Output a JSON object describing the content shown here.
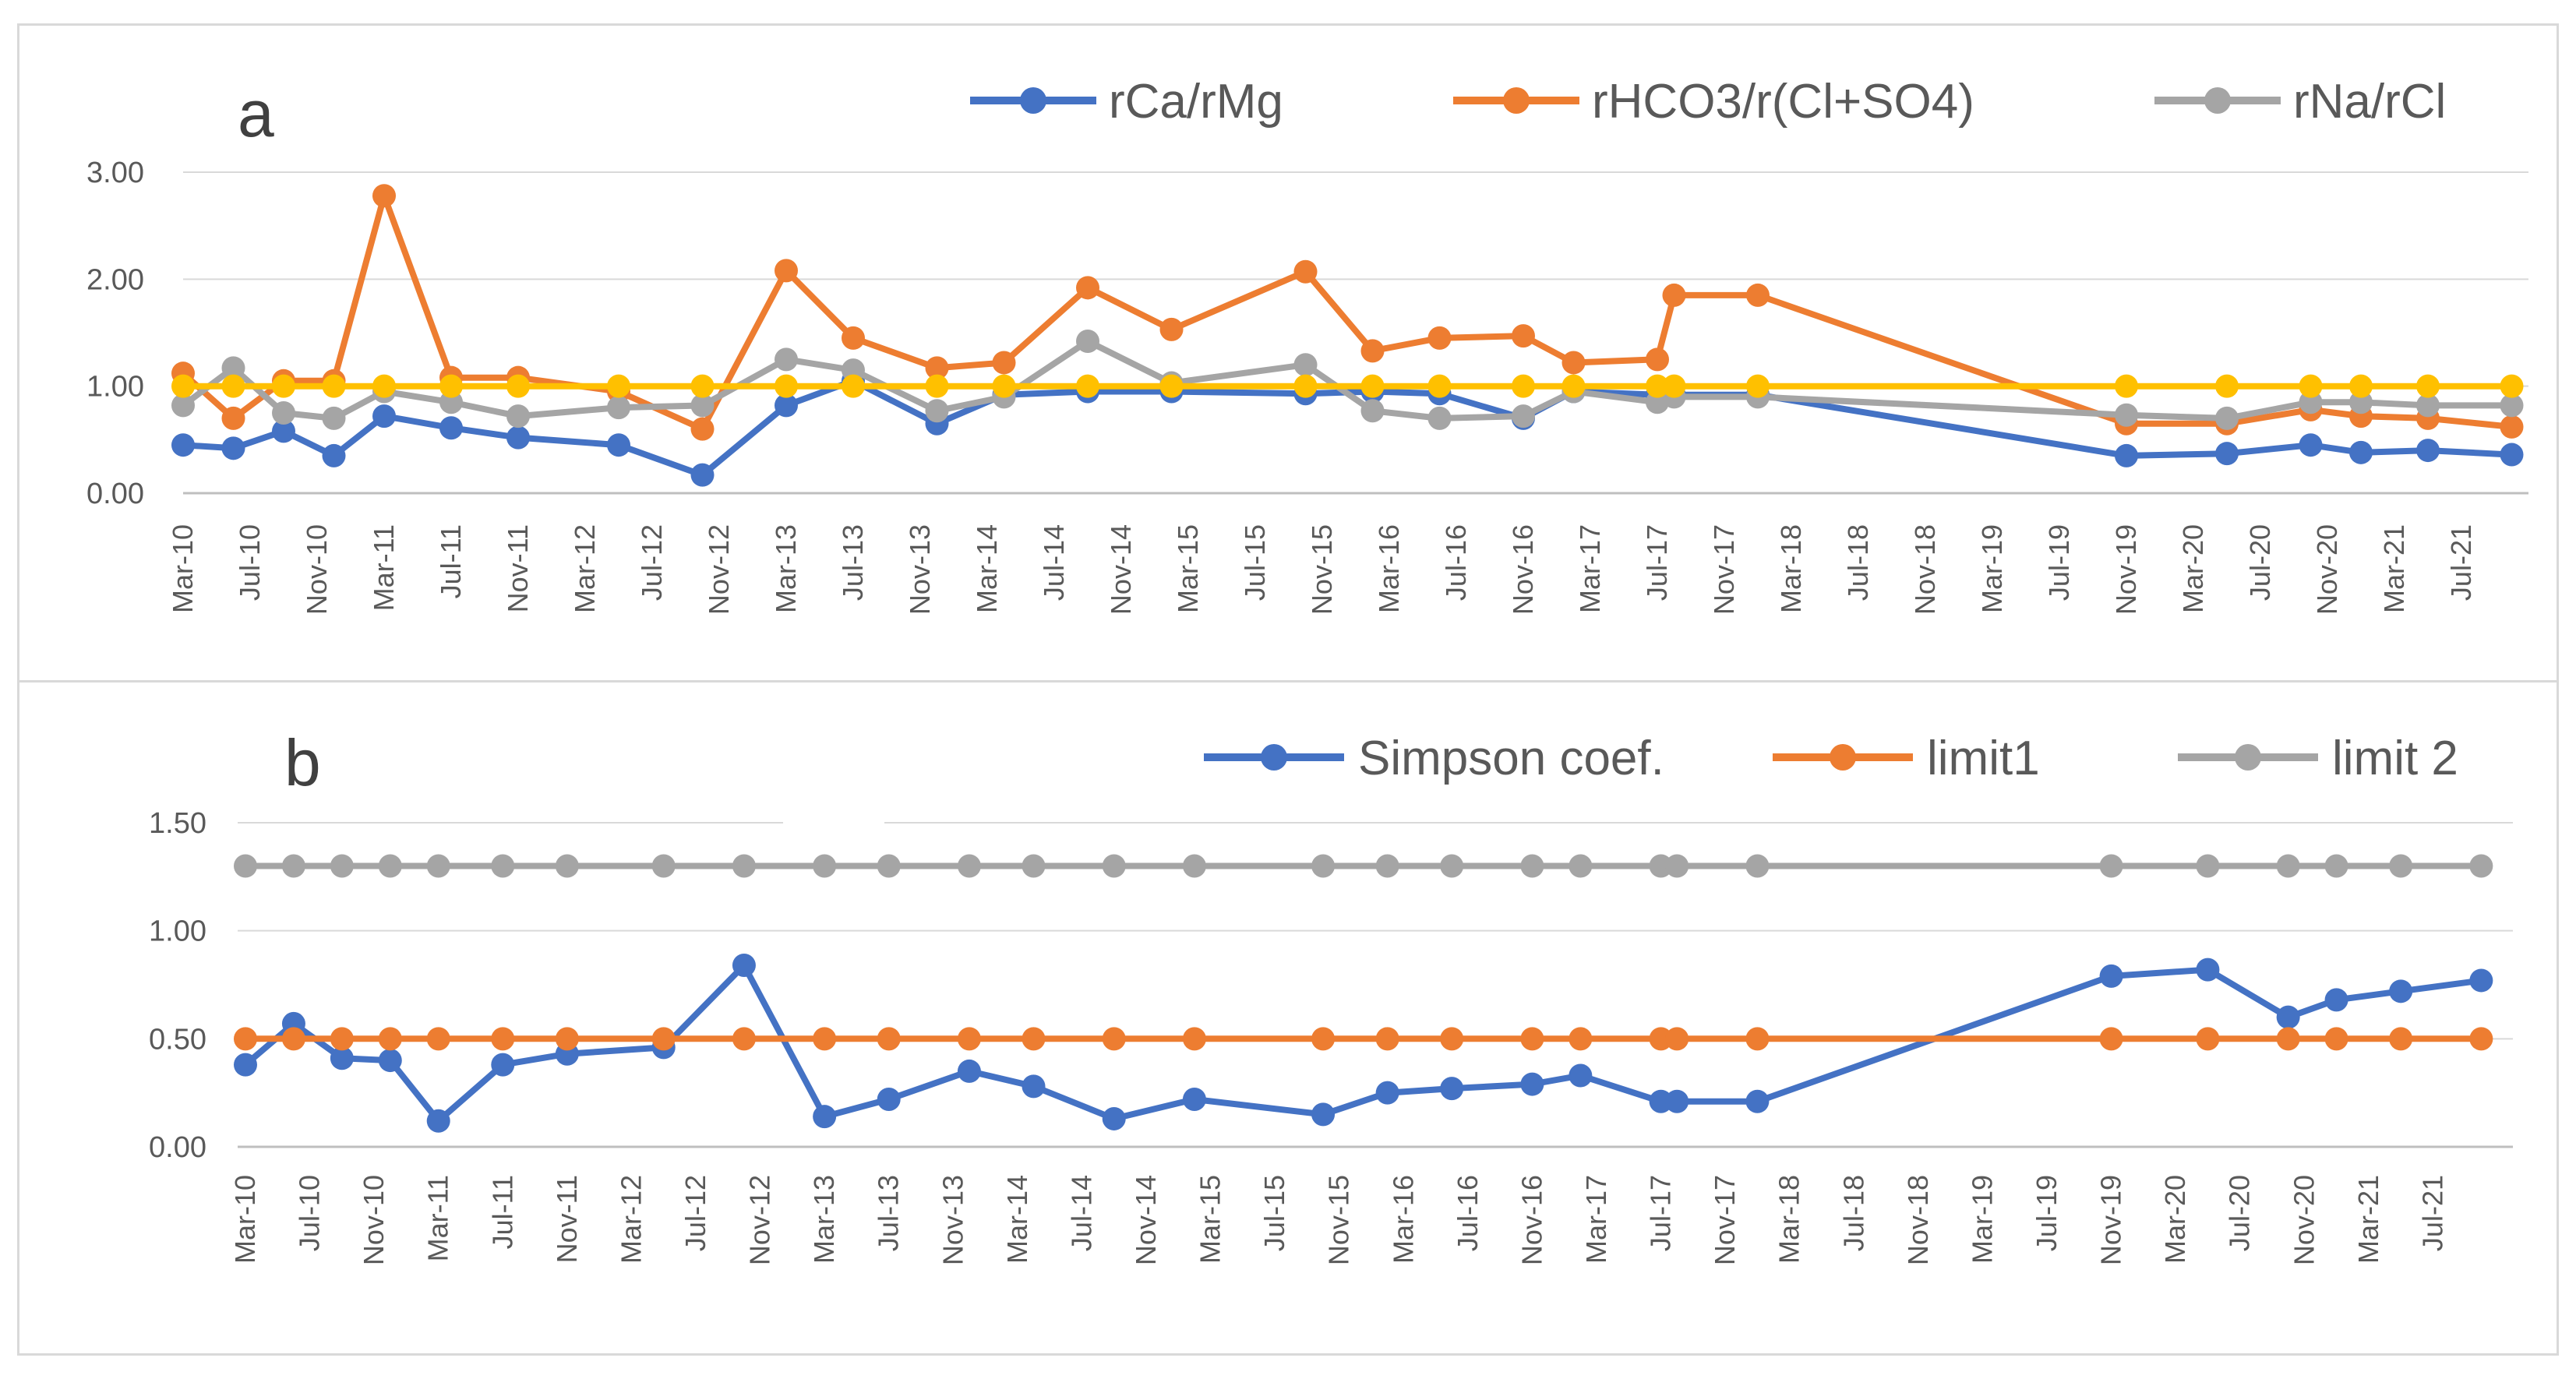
{
  "chart_data": [
    {
      "id": "a",
      "panel_label": "a",
      "type": "line",
      "categories": [
        "Mar-10",
        "Jul-10",
        "Nov-10",
        "Mar-11",
        "Jul-11",
        "Nov-11",
        "Mar-12",
        "Jul-12",
        "Nov-12",
        "Mar-13",
        "Jul-13",
        "Nov-13",
        "Mar-14",
        "Jul-14",
        "Nov-14",
        "Mar-15",
        "Jul-15",
        "Nov-15",
        "Mar-16",
        "Jul-16",
        "Nov-16",
        "Mar-17",
        "Jul-17",
        "Nov-17",
        "Mar-18",
        "Jul-18",
        "Nov-18",
        "Mar-19",
        "Jul-19",
        "Nov-19",
        "Mar-20",
        "Jul-20",
        "Nov-20",
        "Mar-21",
        "Jul-21"
      ],
      "yticks": [
        "0.00",
        "1.00",
        "2.00",
        "3.00"
      ],
      "ylim": [
        0,
        3
      ],
      "xrange_months": [
        0,
        140
      ],
      "grid": true,
      "legend_position": "top-right",
      "series": [
        {
          "name": "rCa/rMg",
          "color": "#4472C4",
          "x": [
            0,
            3,
            6,
            9,
            12,
            16,
            20,
            26,
            31,
            36,
            40,
            45,
            49,
            54,
            59,
            67,
            71,
            75,
            80,
            83,
            88,
            89,
            94,
            116,
            122,
            127,
            130,
            134,
            139
          ],
          "values": [
            0.45,
            0.42,
            0.58,
            0.35,
            0.72,
            0.61,
            0.52,
            0.45,
            0.17,
            0.82,
            1.05,
            0.65,
            0.92,
            0.95,
            0.95,
            0.93,
            0.95,
            0.93,
            0.7,
            0.95,
            0.92,
            0.92,
            0.92,
            0.35,
            0.37,
            0.45,
            0.38,
            0.4,
            0.36
          ]
        },
        {
          "name": "rHCO3/r(Cl+SO4)",
          "color": "#ED7D31",
          "x": [
            0,
            3,
            6,
            9,
            12,
            16,
            20,
            26,
            31,
            36,
            40,
            45,
            49,
            54,
            59,
            67,
            71,
            75,
            80,
            83,
            88,
            89,
            94,
            116,
            122,
            127,
            130,
            134,
            139
          ],
          "values": [
            1.12,
            0.7,
            1.05,
            1.05,
            2.78,
            1.08,
            1.08,
            0.95,
            0.6,
            2.08,
            1.45,
            1.17,
            1.22,
            1.92,
            1.53,
            2.07,
            1.33,
            1.45,
            1.47,
            1.22,
            1.25,
            1.85,
            1.85,
            0.65,
            0.65,
            0.78,
            0.72,
            0.7,
            0.62
          ]
        },
        {
          "name": "rNa/rCl",
          "color": "#A5A5A5",
          "x": [
            0,
            3,
            6,
            9,
            12,
            16,
            20,
            26,
            31,
            36,
            40,
            45,
            49,
            54,
            59,
            67,
            71,
            75,
            80,
            83,
            88,
            89,
            94,
            116,
            122,
            127,
            130,
            134,
            139
          ],
          "values": [
            0.82,
            1.17,
            0.75,
            0.7,
            0.95,
            0.85,
            0.72,
            0.8,
            0.82,
            1.25,
            1.15,
            0.77,
            0.9,
            1.42,
            1.03,
            1.2,
            0.77,
            0.7,
            0.72,
            0.95,
            0.85,
            0.9,
            0.9,
            0.73,
            0.7,
            0.85,
            0.85,
            0.82,
            0.82
          ]
        },
        {
          "name": "",
          "color": "#FFC000",
          "x": [
            0,
            3,
            6,
            9,
            12,
            16,
            20,
            26,
            31,
            36,
            40,
            45,
            49,
            54,
            59,
            67,
            71,
            75,
            80,
            83,
            88,
            89,
            94,
            116,
            122,
            127,
            130,
            134,
            139
          ],
          "values": [
            1.0,
            1.0,
            1.0,
            1.0,
            1.0,
            1.0,
            1.0,
            1.0,
            1.0,
            1.0,
            1.0,
            1.0,
            1.0,
            1.0,
            1.0,
            1.0,
            1.0,
            1.0,
            1.0,
            1.0,
            1.0,
            1.0,
            1.0,
            1.0,
            1.0,
            1.0,
            1.0,
            1.0,
            1.0
          ]
        }
      ]
    },
    {
      "id": "b",
      "panel_label": "b",
      "type": "line",
      "categories": [
        "Mar-10",
        "Jul-10",
        "Nov-10",
        "Mar-11",
        "Jul-11",
        "Nov-11",
        "Mar-12",
        "Jul-12",
        "Nov-12",
        "Mar-13",
        "Jul-13",
        "Nov-13",
        "Mar-14",
        "Jul-14",
        "Nov-14",
        "Mar-15",
        "Jul-15",
        "Nov-15",
        "Mar-16",
        "Jul-16",
        "Nov-16",
        "Mar-17",
        "Jul-17",
        "Nov-17",
        "Mar-18",
        "Jul-18",
        "Nov-18",
        "Mar-19",
        "Jul-19",
        "Nov-19",
        "Mar-20",
        "Jul-20",
        "Nov-20",
        "Mar-21",
        "Jul-21"
      ],
      "yticks": [
        "0.00",
        "0.50",
        "1.00",
        "1.50"
      ],
      "ylim": [
        0,
        1.5
      ],
      "xrange_months": [
        0,
        140
      ],
      "grid": true,
      "legend_position": "top-right",
      "series": [
        {
          "name": "Simpson coef.",
          "color": "#4472C4",
          "x": [
            0,
            3,
            6,
            9,
            12,
            16,
            20,
            26,
            31,
            36,
            40,
            45,
            49,
            54,
            59,
            67,
            71,
            75,
            80,
            83,
            88,
            89,
            94,
            116,
            122,
            127,
            130,
            134,
            139
          ],
          "values": [
            0.38,
            0.57,
            0.41,
            0.4,
            0.12,
            0.38,
            0.43,
            0.46,
            0.84,
            0.14,
            0.22,
            0.35,
            0.28,
            0.13,
            0.22,
            0.15,
            0.25,
            0.27,
            0.29,
            0.33,
            0.21,
            0.21,
            0.21,
            0.79,
            0.82,
            0.6,
            0.68,
            0.72,
            0.77
          ]
        },
        {
          "name": "limit1",
          "color": "#ED7D31",
          "x": [
            0,
            3,
            6,
            9,
            12,
            16,
            20,
            26,
            31,
            36,
            40,
            45,
            49,
            54,
            59,
            67,
            71,
            75,
            80,
            83,
            88,
            89,
            94,
            116,
            122,
            127,
            130,
            134,
            139
          ],
          "values": [
            0.5,
            0.5,
            0.5,
            0.5,
            0.5,
            0.5,
            0.5,
            0.5,
            0.5,
            0.5,
            0.5,
            0.5,
            0.5,
            0.5,
            0.5,
            0.5,
            0.5,
            0.5,
            0.5,
            0.5,
            0.5,
            0.5,
            0.5,
            0.5,
            0.5,
            0.5,
            0.5,
            0.5,
            0.5
          ]
        },
        {
          "name": "limit 2",
          "color": "#A5A5A5",
          "x": [
            0,
            3,
            6,
            9,
            12,
            16,
            20,
            26,
            31,
            36,
            40,
            45,
            49,
            54,
            59,
            67,
            71,
            75,
            80,
            83,
            88,
            89,
            94,
            116,
            122,
            127,
            130,
            134,
            139
          ],
          "values": [
            1.3,
            1.3,
            1.3,
            1.3,
            1.3,
            1.3,
            1.3,
            1.3,
            1.3,
            1.3,
            1.3,
            1.3,
            1.3,
            1.3,
            1.3,
            1.3,
            1.3,
            1.3,
            1.3,
            1.3,
            1.3,
            1.3,
            1.3,
            1.3,
            1.3,
            1.3,
            1.3,
            1.3,
            1.3
          ]
        }
      ]
    }
  ]
}
